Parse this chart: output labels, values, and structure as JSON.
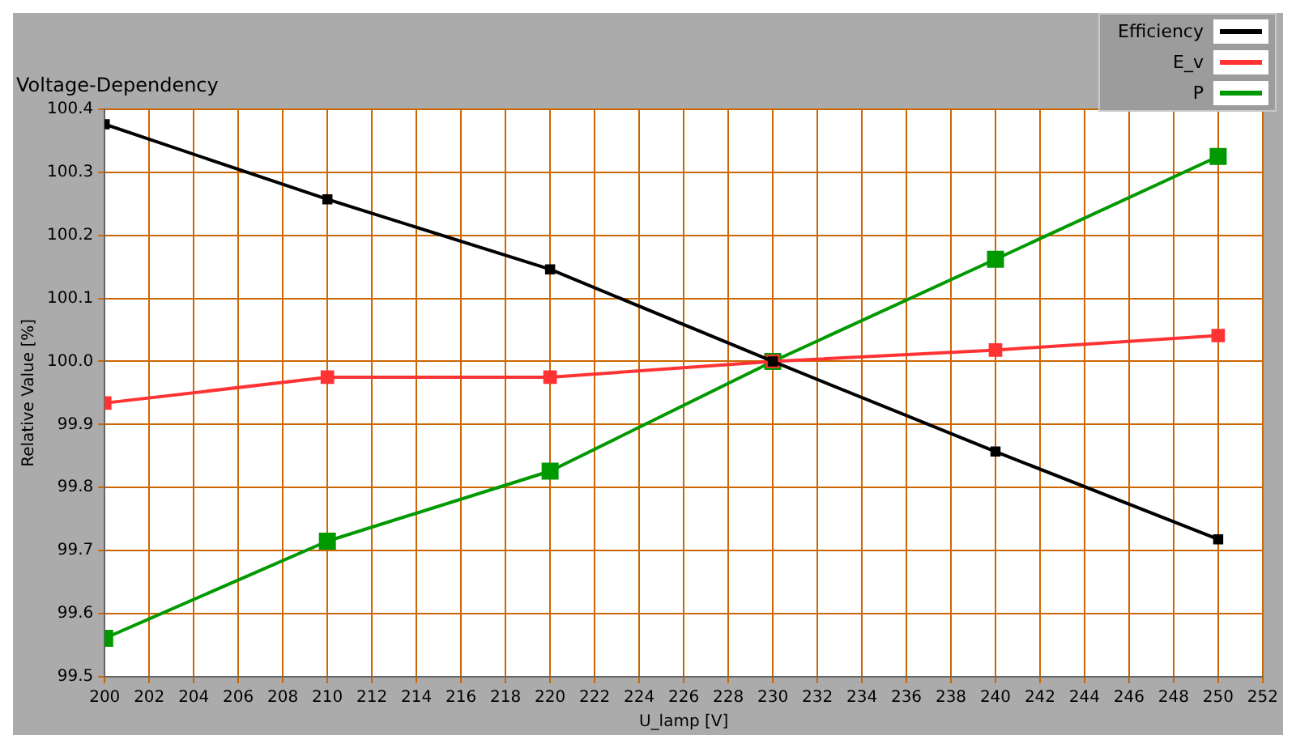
{
  "chart_data": {
    "type": "line",
    "title": "Voltage-Dependency",
    "xlabel": "U_lamp [V]",
    "ylabel": "Relative Value [%]",
    "x": [
      200,
      210,
      220,
      230,
      240,
      250
    ],
    "series": [
      {
        "name": "Efficiency",
        "color": "#000000",
        "values": [
          100.376,
          100.257,
          100.146,
          100.0,
          99.857,
          99.718
        ]
      },
      {
        "name": "E_v",
        "color": "#ff3333",
        "values": [
          99.934,
          99.975,
          99.975,
          100.0,
          100.018,
          100.041
        ]
      },
      {
        "name": "P",
        "color": "#009900",
        "values": [
          99.561,
          99.715,
          99.826,
          100.0,
          100.162,
          100.325
        ]
      }
    ],
    "xlim": [
      200,
      252
    ],
    "xticks": [
      200,
      202,
      204,
      206,
      208,
      210,
      212,
      214,
      216,
      218,
      220,
      222,
      224,
      226,
      228,
      230,
      232,
      234,
      236,
      238,
      240,
      242,
      244,
      246,
      248,
      250,
      252
    ],
    "ylim": [
      99.5,
      100.4
    ],
    "yticks": [
      {
        "value": 99.5,
        "label": "99.5"
      },
      {
        "value": 99.6,
        "label": "99.6"
      },
      {
        "value": 99.7,
        "label": "99.7"
      },
      {
        "value": 99.8,
        "label": "99.8"
      },
      {
        "value": 99.9,
        "label": "99.9"
      },
      {
        "value": 100,
        "label": "100.0"
      },
      {
        "value": 100.1,
        "label": "100.1"
      },
      {
        "value": 100.2,
        "label": "100.2"
      },
      {
        "value": 100.3,
        "label": "100.3"
      },
      {
        "value": 100.4,
        "label": "100.4"
      }
    ],
    "grid": true,
    "legend": "top right",
    "marker": "square",
    "line_style": "solid"
  }
}
